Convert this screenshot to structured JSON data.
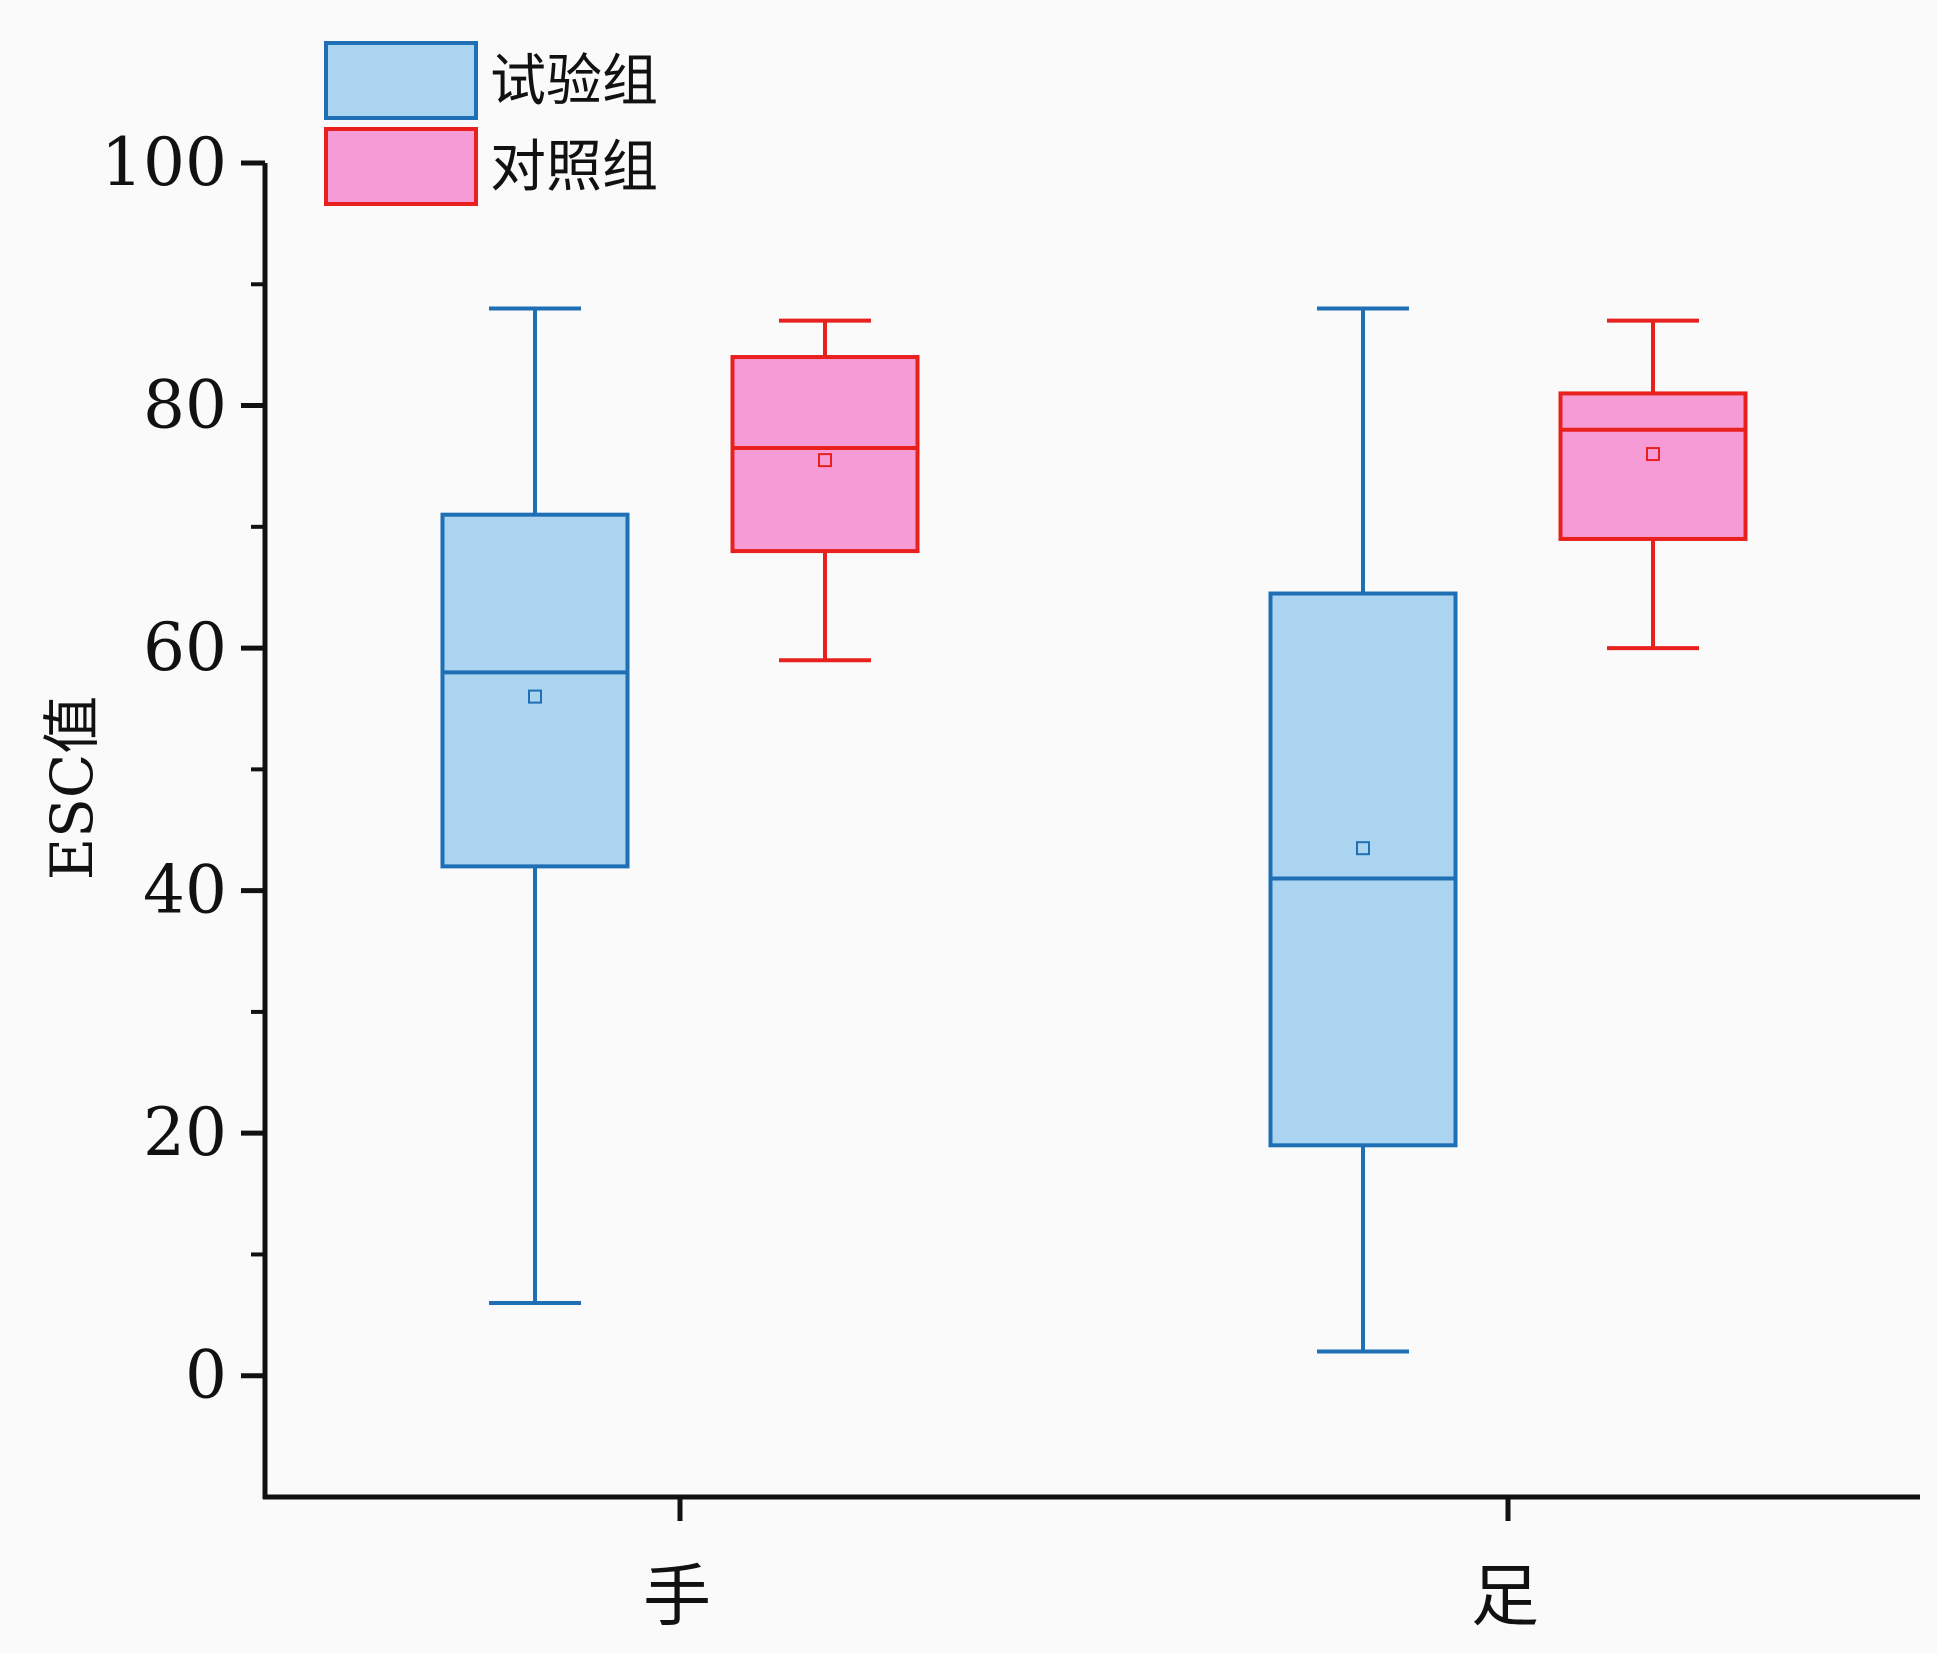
{
  "chart_data": {
    "type": "box",
    "xlabel": "",
    "ylabel": "ESC值",
    "ylim": [
      -10,
      100
    ],
    "yticks": [
      0,
      20,
      40,
      60,
      80,
      100
    ],
    "yticks_minor": [
      10,
      30,
      50,
      70,
      90
    ],
    "categories": [
      "手",
      "足"
    ],
    "legend_position": "top-left",
    "series": [
      {
        "name": "试验组",
        "fill": "#aad4f0",
        "stroke": "#1f6fb5",
        "boxes": [
          {
            "category": "手",
            "whisker_low": 6,
            "q1": 42,
            "median": 58,
            "q3": 71,
            "whisker_high": 88,
            "mean": 56
          },
          {
            "category": "足",
            "whisker_low": 2,
            "q1": 19,
            "median": 41,
            "q3": 64.5,
            "whisker_high": 88,
            "mean": 43.5
          }
        ]
      },
      {
        "name": "对照组",
        "fill": "#f79bd6",
        "stroke": "#e8201e",
        "boxes": [
          {
            "category": "手",
            "whisker_low": 59,
            "q1": 68,
            "median": 76.5,
            "q3": 84,
            "whisker_high": 87,
            "mean": 75.5
          },
          {
            "category": "足",
            "whisker_low": 60,
            "q1": 69,
            "median": 78,
            "q3": 81,
            "whisker_high": 87,
            "mean": 76
          }
        ]
      }
    ]
  }
}
